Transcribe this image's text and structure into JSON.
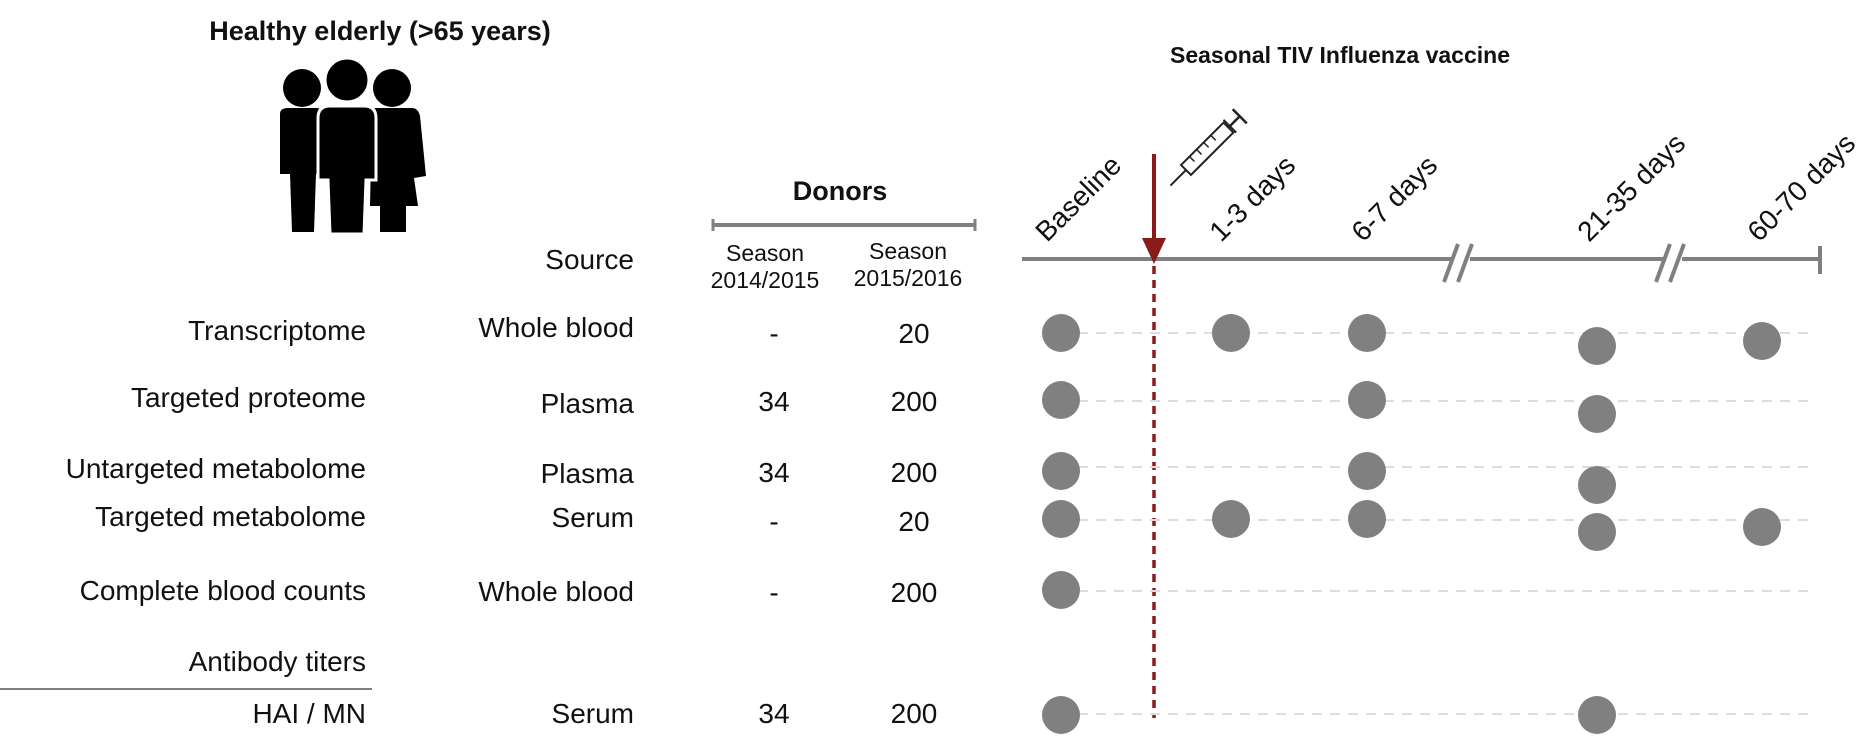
{
  "header": {
    "cohort_title": "Healthy elderly (>65 years)",
    "people_icon": "people-group-icon",
    "vaccine_title": "Seasonal TIV Influenza vaccine",
    "syringe_icon": "syringe-icon"
  },
  "columns": {
    "source": "Source",
    "donors": "Donors",
    "season1_line1": "Season",
    "season1_line2": "2014/2015",
    "season2_line1": "Season",
    "season2_line2": "2015/2016"
  },
  "timepoints": [
    "Baseline",
    "1-3 days",
    "6-7 days",
    "21-35 days",
    "60-70 days"
  ],
  "rows": [
    {
      "label": "Transcriptome",
      "source": "Whole blood",
      "s1": "-",
      "s2": "20",
      "dots": [
        true,
        true,
        true,
        true,
        true
      ]
    },
    {
      "label": "Targeted proteome",
      "source": "Plasma",
      "s1": "34",
      "s2": "200",
      "dots": [
        true,
        false,
        true,
        true,
        false
      ]
    },
    {
      "label": "Untargeted metabolome",
      "source": "Plasma",
      "s1": "34",
      "s2": "200",
      "dots": [
        true,
        false,
        true,
        true,
        false
      ]
    },
    {
      "label": "Targeted metabolome",
      "source": "Serum",
      "s1": "-",
      "s2": "20",
      "dots": [
        true,
        true,
        true,
        true,
        true
      ]
    },
    {
      "label": "Complete blood counts",
      "source": "Whole blood",
      "s1": "-",
      "s2": "200",
      "dots": [
        true,
        false,
        false,
        false,
        false
      ]
    },
    {
      "label": "HAI / MN",
      "source": "Serum",
      "s1": "34",
      "s2": "200",
      "dots": [
        true,
        false,
        false,
        true,
        false
      ]
    }
  ],
  "antibody_group": "Antibody titers",
  "colors": {
    "accent": "#8b1a1a",
    "grey": "#808080",
    "dash": "#dddddd"
  }
}
